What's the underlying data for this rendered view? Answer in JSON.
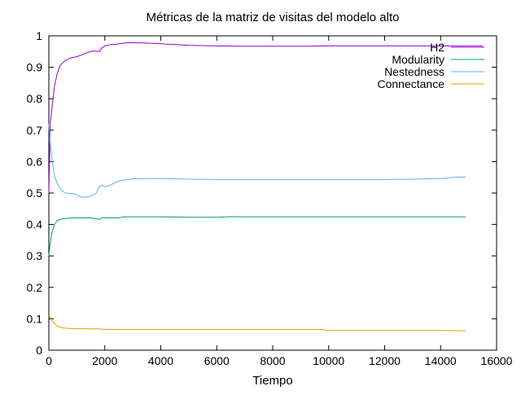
{
  "chart_data": {
    "type": "line",
    "title": "Métricas de la matriz de visitas del modelo alto",
    "xlabel": "Tiempo",
    "ylabel": "",
    "xlim": [
      0,
      16000
    ],
    "ylim": [
      0,
      1
    ],
    "x_ticks": [
      0,
      2000,
      4000,
      6000,
      8000,
      10000,
      12000,
      14000,
      16000
    ],
    "y_ticks": [
      0,
      0.1,
      0.2,
      0.3,
      0.4,
      0.5,
      0.6,
      0.7,
      0.8,
      0.9,
      1
    ],
    "x_tick_labels": [
      "0",
      "2000",
      "4000",
      "6000",
      "8000",
      "10000",
      "12000",
      "14000",
      "16000"
    ],
    "y_tick_labels": [
      "0",
      "0.1",
      "0.2",
      "0.3",
      "0.4",
      "0.5",
      "0.6",
      "0.7",
      "0.8",
      "0.9",
      "1"
    ],
    "grid": false,
    "legend_position": "top-right",
    "series": [
      {
        "name": "H2",
        "color": "#9400d3",
        "x": [
          0,
          50,
          100,
          150,
          200,
          300,
          400,
          500,
          600,
          700,
          800,
          1000,
          1200,
          1400,
          1600,
          1800,
          1900,
          2000,
          2200,
          2400,
          2600,
          2800,
          3000,
          3500,
          4000,
          4500,
          5000,
          6000,
          7000,
          8000,
          9000,
          10000,
          11000,
          12000,
          13000,
          14000,
          15000,
          15500
        ],
        "y": [
          0.5,
          0.72,
          0.76,
          0.8,
          0.84,
          0.88,
          0.905,
          0.915,
          0.922,
          0.926,
          0.93,
          0.934,
          0.94,
          0.948,
          0.952,
          0.95,
          0.962,
          0.968,
          0.972,
          0.973,
          0.976,
          0.978,
          0.978,
          0.977,
          0.975,
          0.972,
          0.97,
          0.968,
          0.967,
          0.967,
          0.967,
          0.968,
          0.968,
          0.968,
          0.968,
          0.968,
          0.968,
          0.968
        ]
      },
      {
        "name": "Modularity",
        "color": "#009e73",
        "x": [
          0,
          50,
          100,
          200,
          300,
          400,
          500,
          700,
          1000,
          1500,
          1800,
          1900,
          2000,
          2500,
          2700,
          3000,
          4000,
          5000,
          6000,
          6500,
          7000,
          8000,
          9000,
          10000,
          11000,
          12000,
          13000,
          14000,
          14900
        ],
        "y": [
          0.3,
          0.34,
          0.37,
          0.4,
          0.412,
          0.416,
          0.418,
          0.42,
          0.421,
          0.421,
          0.416,
          0.421,
          0.421,
          0.421,
          0.424,
          0.424,
          0.424,
          0.423,
          0.423,
          0.425,
          0.424,
          0.424,
          0.424,
          0.424,
          0.424,
          0.424,
          0.424,
          0.424,
          0.424
        ]
      },
      {
        "name": "Nestedness",
        "color": "#56b4e9",
        "x": [
          0,
          50,
          100,
          150,
          200,
          300,
          400,
          500,
          600,
          800,
          1000,
          1100,
          1300,
          1500,
          1700,
          1800,
          1900,
          2000,
          2200,
          2400,
          2600,
          3000,
          3500,
          4000,
          5000,
          6000,
          8000,
          10000,
          12000,
          13000,
          14000,
          14500,
          14900
        ],
        "y": [
          0.72,
          0.66,
          0.62,
          0.58,
          0.555,
          0.53,
          0.515,
          0.505,
          0.5,
          0.498,
          0.495,
          0.488,
          0.486,
          0.49,
          0.5,
          0.52,
          0.525,
          0.52,
          0.525,
          0.535,
          0.54,
          0.545,
          0.546,
          0.546,
          0.544,
          0.543,
          0.543,
          0.543,
          0.543,
          0.544,
          0.546,
          0.55,
          0.551
        ]
      },
      {
        "name": "Connectance",
        "color": "#e69f00",
        "x": [
          0,
          50,
          100,
          200,
          300,
          400,
          500,
          600,
          800,
          1000,
          1500,
          1800,
          2000,
          3000,
          4000,
          6000,
          8000,
          9800,
          9900,
          10500,
          12000,
          14000,
          14900
        ],
        "y": [
          0.11,
          0.105,
          0.095,
          0.085,
          0.077,
          0.073,
          0.071,
          0.07,
          0.069,
          0.069,
          0.068,
          0.068,
          0.066,
          0.066,
          0.066,
          0.066,
          0.066,
          0.066,
          0.063,
          0.063,
          0.063,
          0.063,
          0.062
        ]
      }
    ]
  }
}
